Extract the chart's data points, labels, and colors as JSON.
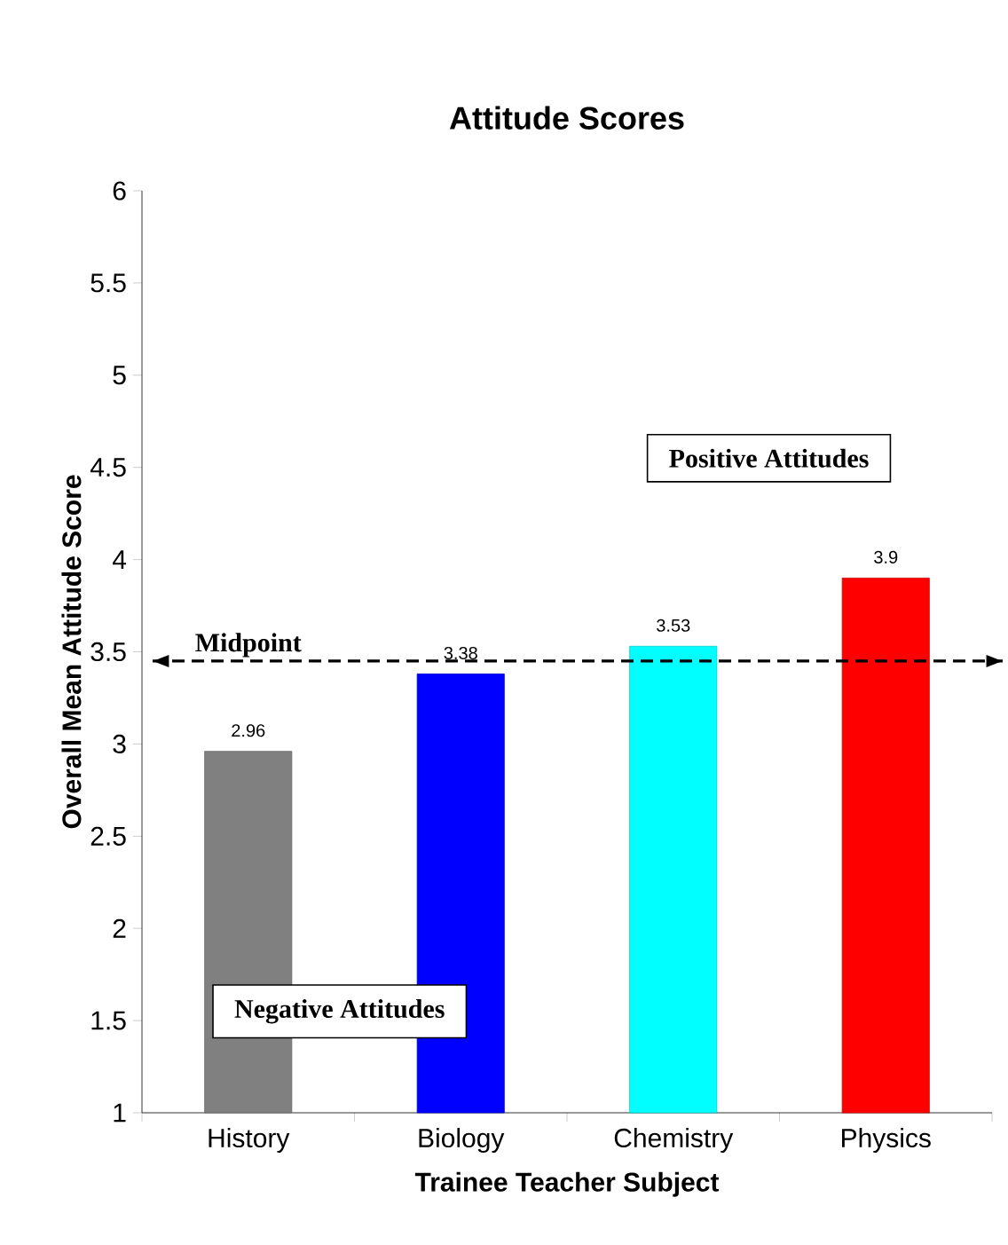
{
  "chart_data": {
    "type": "bar",
    "title": "Attitude Scores",
    "xlabel": "Trainee Teacher Subject",
    "ylabel": "Overall Mean Attitude Score",
    "categories": [
      "History",
      "Biology",
      "Chemistry",
      "Physics"
    ],
    "values": [
      2.96,
      3.38,
      3.53,
      3.9
    ],
    "colors": [
      "#808080",
      "#0000ff",
      "#00ffff",
      "#ff0000"
    ],
    "ylim": [
      1,
      6
    ],
    "yticks": [
      1,
      1.5,
      2,
      2.5,
      3,
      3.5,
      4,
      4.5,
      5,
      5.5,
      6
    ],
    "data_labels": true,
    "grid": false,
    "ref_lines": [
      {
        "axis": "y",
        "value": 3.45,
        "label": "Midpoint",
        "color": "#000000",
        "line_style": "dashed"
      }
    ],
    "annotations": [
      "Positive Attitudes",
      "Negative Attitudes"
    ]
  }
}
